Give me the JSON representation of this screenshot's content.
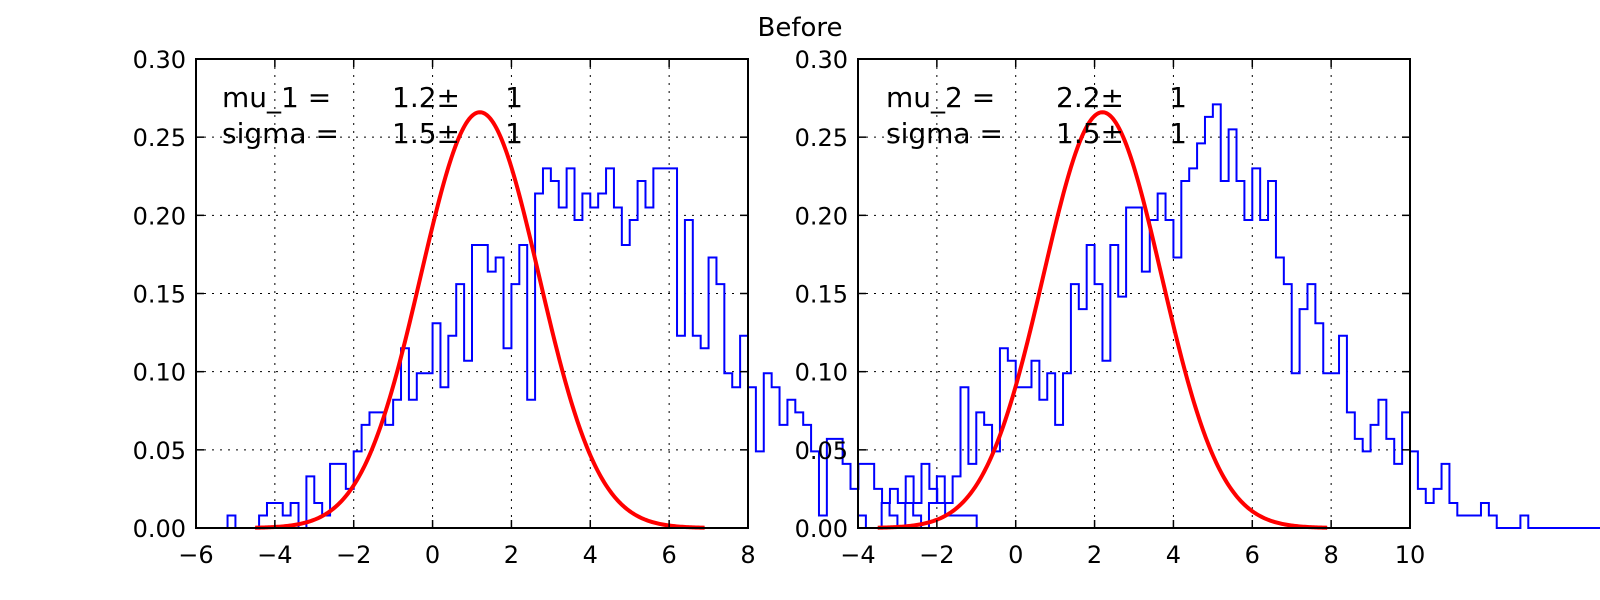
{
  "figure": {
    "suptitle": "Before"
  },
  "chart_data": [
    {
      "type": "histogram",
      "title": "",
      "xlabel": "",
      "ylabel": "",
      "xlim": [
        -6,
        8
      ],
      "ylim": [
        0,
        0.3
      ],
      "xticks": [
        -6,
        -4,
        -2,
        0,
        2,
        4,
        6,
        8
      ],
      "yticks": [
        0.0,
        0.05,
        0.1,
        0.15,
        0.2,
        0.25,
        0.3
      ],
      "ytick_labels": [
        "0.00",
        "0.05",
        "0.10",
        "0.15",
        "0.20",
        "0.25",
        "0.30"
      ],
      "grid": true,
      "hist_color": "#0000ff",
      "fit_color": "#ff0000",
      "bin_start": -5.2,
      "bin_width": 0.2,
      "counts": [
        0.008,
        0,
        0,
        0,
        0.008,
        0.016,
        0.016,
        0.008,
        0.016,
        0,
        0.033,
        0.016,
        0.008,
        0.041,
        0.041,
        0.025,
        0.049,
        0.066,
        0.074,
        0.074,
        0.066,
        0.082,
        0.115,
        0.082,
        0.099,
        0.099,
        0.131,
        0.09,
        0.123,
        0.156,
        0.107,
        0.181,
        0.181,
        0.164,
        0.173,
        0.115,
        0.156,
        0.181,
        0.082,
        0.214,
        0.23,
        0.222,
        0.205,
        0.23,
        0.197,
        0.214,
        0.205,
        0.214,
        0.23,
        0.205,
        0.181,
        0.197,
        0.222,
        0.205,
        0.23,
        0.23,
        0.23,
        0.123,
        0.197,
        0.123,
        0.115,
        0.173,
        0.156,
        0.099,
        0.09,
        0.123,
        0.09,
        0.049,
        0.099,
        0.09,
        0.066,
        0.082,
        0.074,
        0.066,
        0.049,
        0.008,
        0.057,
        0.057,
        0.041,
        0.025,
        0.041,
        0.041,
        0.025,
        0.016,
        0.025,
        0.016,
        0.033,
        0.016,
        0.041,
        0.025,
        0.016,
        0.008,
        0.008,
        0.008,
        0.008,
        0,
        0,
        0
      ],
      "fit": {
        "mu": 1.2,
        "sigma": 1.5
      },
      "annotation": [
        {
          "name": "mu_1 =",
          "value": "1.2±",
          "err": "1"
        },
        {
          "name": "sigma =",
          "value": "1.5±",
          "err": "1"
        }
      ]
    },
    {
      "type": "histogram",
      "title": "",
      "xlabel": "",
      "ylabel": "",
      "xlim": [
        -4,
        10
      ],
      "ylim": [
        0,
        0.3
      ],
      "xticks": [
        -4,
        -2,
        0,
        2,
        4,
        6,
        8,
        10
      ],
      "yticks": [
        0.0,
        0.05,
        0.1,
        0.15,
        0.2,
        0.25,
        0.3
      ],
      "ytick_labels": [
        "0.00",
        "0.05",
        "0.10",
        "0.15",
        "0.20",
        "0.25",
        "0.30"
      ],
      "grid": true,
      "hist_color": "#0000ff",
      "fit_color": "#ff0000",
      "bin_start": -4.0,
      "bin_width": 0.2,
      "counts": [
        0.008,
        0,
        0,
        0.016,
        0.008,
        0,
        0.016,
        0.008,
        0,
        0.016,
        0.033,
        0.016,
        0.033,
        0.09,
        0.041,
        0.074,
        0.066,
        0.049,
        0.115,
        0.107,
        0.09,
        0.09,
        0.107,
        0.082,
        0.099,
        0.066,
        0.099,
        0.156,
        0.14,
        0.181,
        0.156,
        0.107,
        0.181,
        0.148,
        0.205,
        0.205,
        0.164,
        0.197,
        0.214,
        0.197,
        0.173,
        0.222,
        0.23,
        0.246,
        0.263,
        0.271,
        0.222,
        0.255,
        0.222,
        0.197,
        0.23,
        0.197,
        0.222,
        0.173,
        0.156,
        0.099,
        0.14,
        0.156,
        0.131,
        0.099,
        0.099,
        0.123,
        0.074,
        0.057,
        0.049,
        0.066,
        0.082,
        0.057,
        0.041,
        0.074,
        0.049,
        0.025,
        0.016,
        0.025,
        0.041,
        0.016,
        0.008,
        0.008,
        0.008,
        0.016,
        0.008,
        0,
        0,
        0,
        0.008,
        0,
        0,
        0,
        0,
        0,
        0,
        0,
        0,
        0,
        0,
        0,
        0,
        0,
        0
      ],
      "fit": {
        "mu": 2.2,
        "sigma": 1.5
      },
      "annotation": [
        {
          "name": "mu_2 =",
          "value": "2.2±",
          "err": "1"
        },
        {
          "name": "sigma =",
          "value": "1.5±",
          "err": "1"
        }
      ]
    }
  ]
}
